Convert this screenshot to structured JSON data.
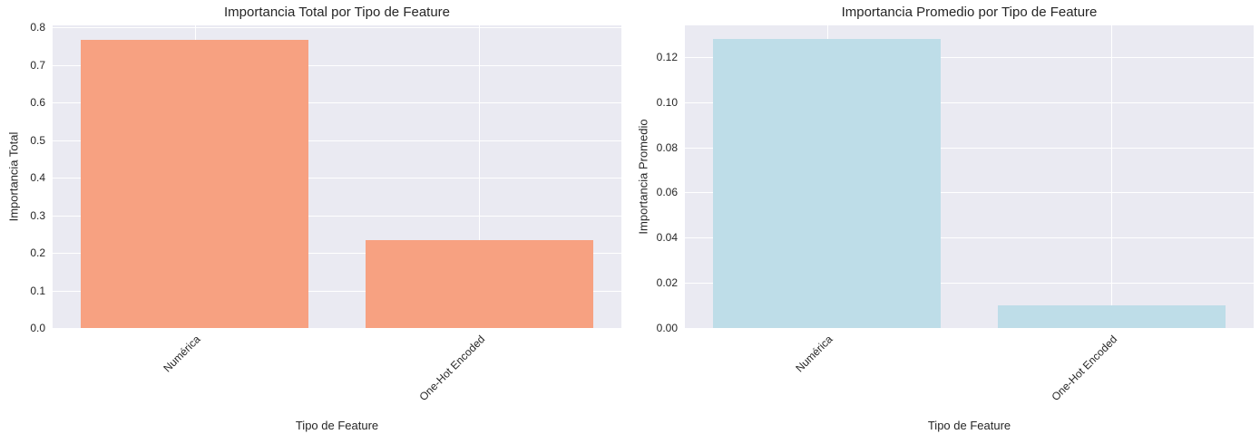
{
  "figure": {
    "background": "#ffffff",
    "plot_background": "#eaeaf2",
    "grid_color": "#ffffff",
    "text_color": "#262626"
  },
  "chart_data": [
    {
      "type": "bar",
      "title": "Importancia Total por Tipo de Feature",
      "xlabel": "Tipo de Feature",
      "ylabel": "Importancia Total",
      "categories": [
        "Numérica",
        "One-Hot Encoded"
      ],
      "values": [
        0.768,
        0.235
      ],
      "bar_color": "#f7a181",
      "ylim": [
        0,
        0.806
      ],
      "yticks": [
        0.0,
        0.1,
        0.2,
        0.3,
        0.4,
        0.5,
        0.6,
        0.7,
        0.8
      ],
      "ytick_labels": [
        "0.0",
        "0.1",
        "0.2",
        "0.3",
        "0.4",
        "0.5",
        "0.6",
        "0.7",
        "0.8"
      ],
      "grid": true,
      "legend": "none"
    },
    {
      "type": "bar",
      "title": "Importancia Promedio por Tipo de Feature",
      "xlabel": "Tipo de Feature",
      "ylabel": "Importancia Promedio",
      "categories": [
        "Numérica",
        "One-Hot Encoded"
      ],
      "values": [
        0.128,
        0.01
      ],
      "bar_color": "#bedde8",
      "ylim": [
        0,
        0.134
      ],
      "yticks": [
        0.0,
        0.02,
        0.04,
        0.06,
        0.08,
        0.1,
        0.12
      ],
      "ytick_labels": [
        "0.00",
        "0.02",
        "0.04",
        "0.06",
        "0.08",
        "0.10",
        "0.12"
      ],
      "grid": true,
      "legend": "none"
    }
  ]
}
